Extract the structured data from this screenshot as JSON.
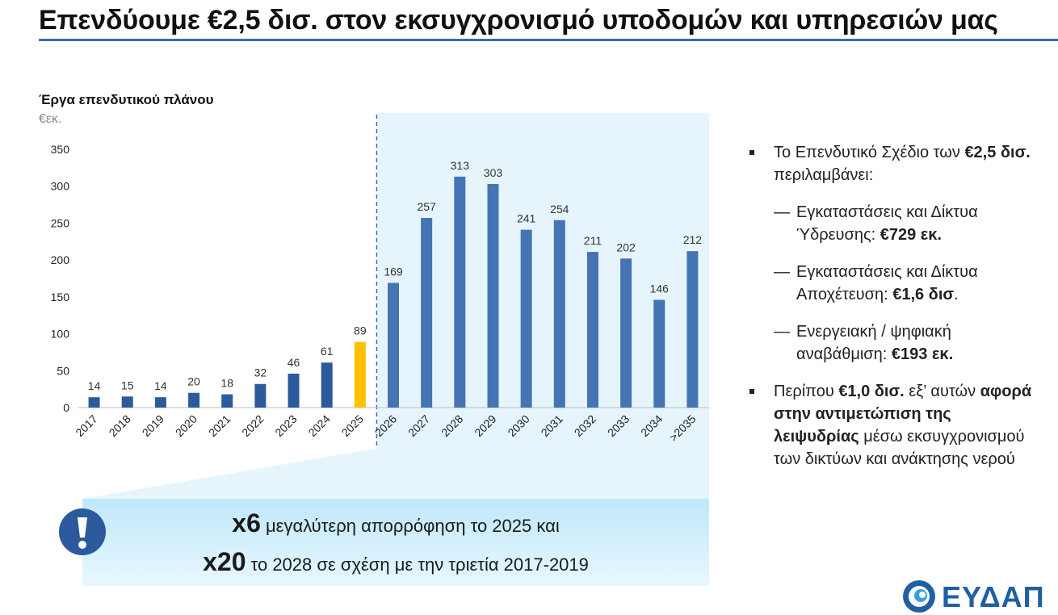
{
  "header": {
    "title": "Επενδύουμε €2,5 δισ. στον εκσυγχρονισμό υποδομών και υπηρεσιών μας"
  },
  "chart_data": {
    "type": "bar",
    "title": "Έργα επενδυτικού πλάνου",
    "unit": "€εκ.",
    "categories": [
      "2017",
      "2018",
      "2019",
      "2020",
      "2021",
      "2022",
      "2023",
      "2024",
      "2025",
      "2026",
      "2027",
      "2028",
      "2029",
      "2030",
      "2031",
      "2032",
      "2033",
      "2034",
      ">2035"
    ],
    "values": [
      14,
      15,
      14,
      20,
      18,
      32,
      46,
      61,
      89,
      169,
      257,
      313,
      303,
      241,
      254,
      211,
      202,
      146,
      212
    ],
    "ylim": [
      0,
      350
    ],
    "yticks": [
      0,
      50,
      100,
      150,
      200,
      250,
      300,
      350
    ],
    "xlabel": "",
    "ylabel": "",
    "highlight_category": "2025",
    "colors": {
      "past": "#2b5b9c",
      "current": "#ffc000",
      "future": "#4574b4",
      "future_band": "#e6f5fc",
      "divider": "#2f6fb3"
    }
  },
  "bullets": {
    "b1": {
      "pre": "Το Επενδυτικό Σχέδιο των ",
      "bold": "€2,5 δισ.",
      "post": " περιλαμβάνει:"
    },
    "dash": "—",
    "items": [
      {
        "pre": "Εγκαταστάσεις και Δίκτυα Ύδρευσης: ",
        "bold": "€729 εκ.",
        "post": ""
      },
      {
        "pre": "Εγκαταστάσεις και Δίκτυα Αποχέτευση: ",
        "bold": "€1,6 δισ",
        "post": "."
      },
      {
        "pre": "Ενεργειακή / ψηφιακή αναβάθμιση: ",
        "bold": "€193 εκ.",
        "post": ""
      }
    ],
    "b2": {
      "pre": "Περίπου ",
      "bold1": "€1,0 δισ.",
      "mid": " εξ’ αυτών ",
      "bold2": "αφορά στην αντιμετώπιση της λειψυδρίας",
      "post": " μέσω εκσυγχρονισμού των δικτύων και ανάκτησης νερού"
    }
  },
  "callout": {
    "line1_bold": "x6",
    "line1_text": " μεγαλύτερη απορρόφηση το 2025 και",
    "line2_bold": "x20",
    "line2_text": " το 2028 σε σχέση με την τριετία 2017-2019"
  },
  "logo": {
    "text": "ΕΥΔΑΠ"
  }
}
